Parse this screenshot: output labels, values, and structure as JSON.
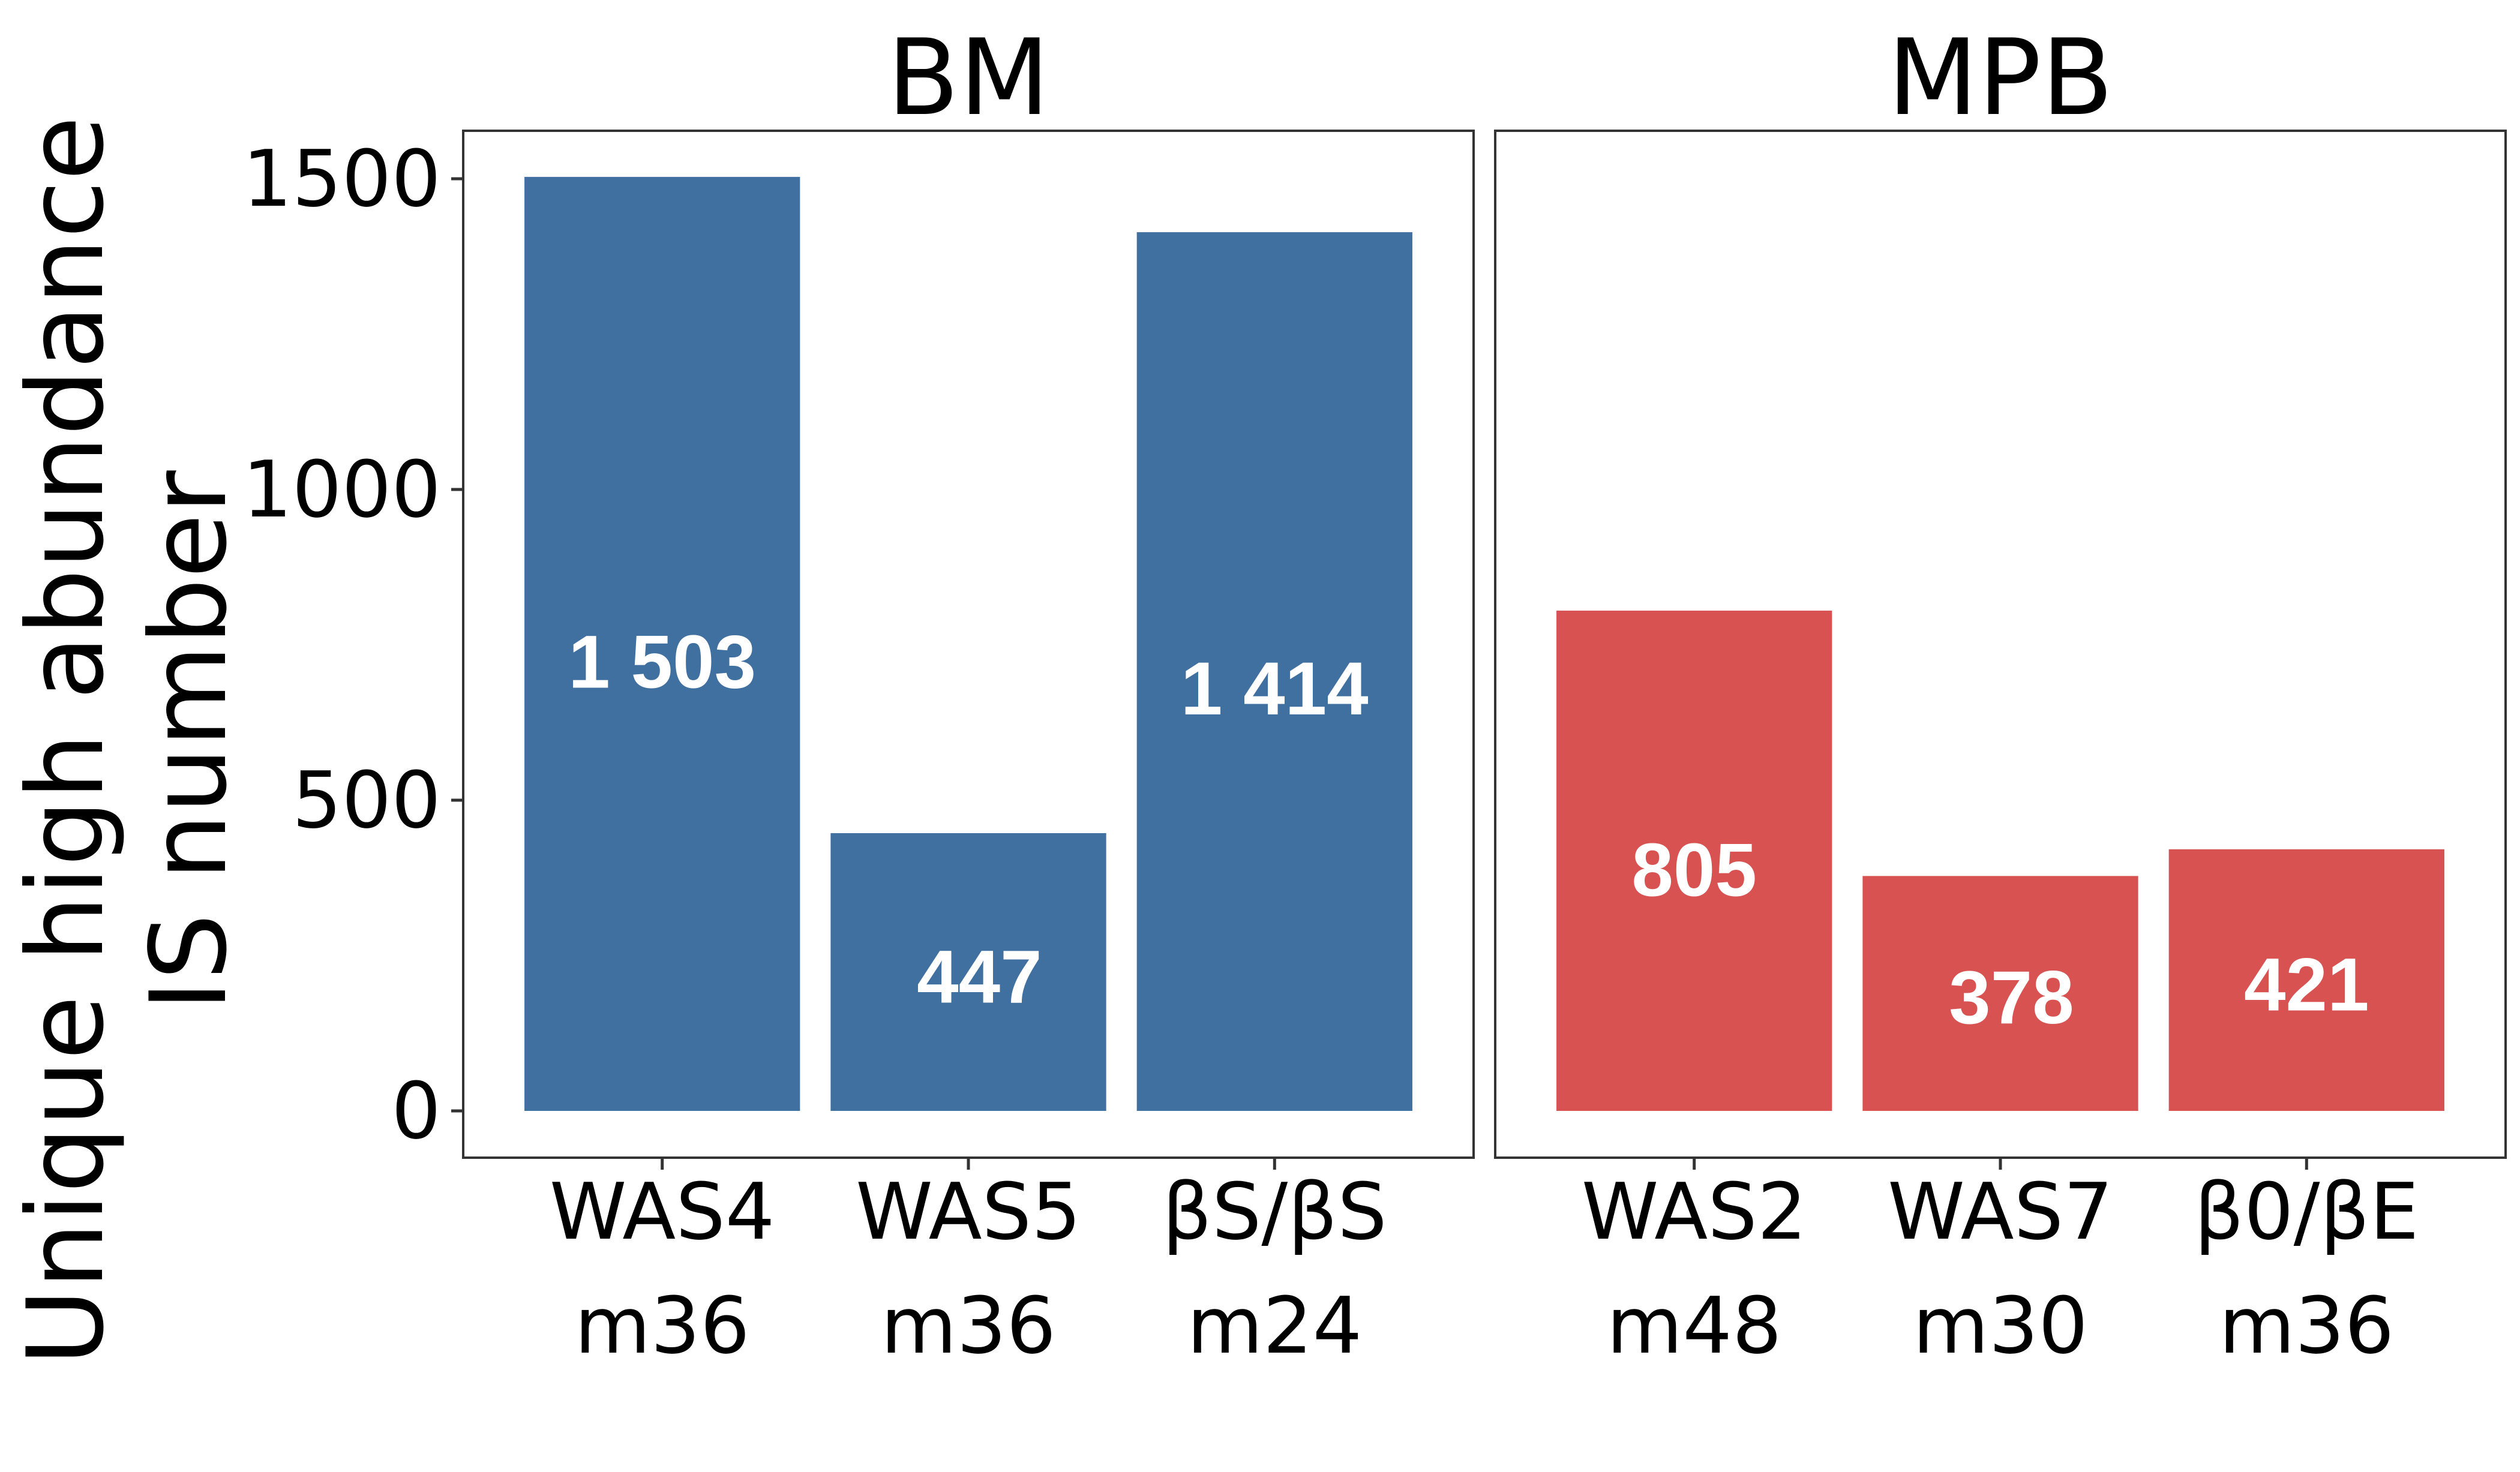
{
  "chart_data": {
    "type": "bar",
    "ylabel_lines": [
      "Unique high abundance",
      "IS number"
    ],
    "ylim": [
      0,
      1575
    ],
    "y_ticks": [
      0,
      500,
      1000,
      1500
    ],
    "y_tick_labels": [
      "0",
      "500",
      "1000",
      "1500"
    ],
    "grid": false,
    "legend": "none",
    "panels": [
      {
        "title": "BM",
        "color": "#4070a0",
        "categories": [
          {
            "line1": "WAS4",
            "line2": "m36"
          },
          {
            "line1": "WAS5",
            "line2": "m36"
          },
          {
            "line1": "βS/βS",
            "line2": "m24"
          }
        ],
        "values": [
          1503,
          447,
          1414
        ],
        "value_labels": [
          "1 503",
          "447",
          "1 414"
        ]
      },
      {
        "title": "MPB",
        "color": "#d85252",
        "categories": [
          {
            "line1": "WAS2",
            "line2": "m48"
          },
          {
            "line1": "WAS7",
            "line2": "m30"
          },
          {
            "line1": "β0/βE",
            "line2": "m36"
          }
        ],
        "values": [
          805,
          378,
          421
        ],
        "value_labels": [
          "805",
          "378",
          "421"
        ]
      }
    ]
  }
}
